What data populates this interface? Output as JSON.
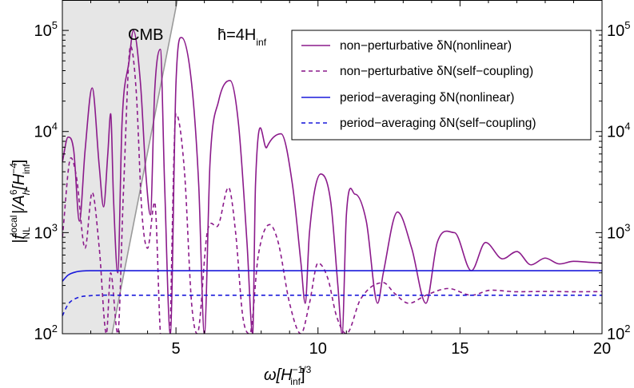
{
  "chart_data": {
    "type": "line",
    "x_scale": "linear",
    "y_scale": "log",
    "xlim": [
      1,
      20
    ],
    "ylim": [
      100,
      200000
    ],
    "x_ticks": [
      5,
      10,
      15,
      20
    ],
    "x_tick_labels": [
      "5",
      "10",
      "15",
      "20"
    ],
    "y_ticks": [
      100,
      1000,
      10000,
      100000
    ],
    "y_tick_labels": [
      {
        "base": "10",
        "exp": "2"
      },
      {
        "base": "10",
        "exp": "3"
      },
      {
        "base": "10",
        "exp": "4"
      },
      {
        "base": "10",
        "exp": "5"
      }
    ],
    "xlabel": {
      "main": "ω[H",
      "sub": "inf",
      "sup": "−1/3",
      "close": "]"
    },
    "ylabel": {
      "part1": "|f",
      "sup1": "local",
      "sub1": "NL",
      "part2": "|/A",
      "sup2": "6",
      "sub2": "h",
      "part3": "[H",
      "sup3": "−4",
      "sub3": "inf",
      "close": "]"
    },
    "annotations": {
      "cmb_label": "CMB",
      "param_label": {
        "main": "h̄=4H",
        "sub": "inf"
      }
    },
    "cmb_region": {
      "boundary_x_at_ymin": 2.75,
      "boundary_x_at_ymax": 5.05,
      "color": "#e6e6e6"
    },
    "grid": false,
    "legend_position": "top-right",
    "series": [
      {
        "name": "non−perturbative δN(nonlinear)",
        "color": "#8b1a8b",
        "dash": "solid",
        "points": [
          [
            1.0,
            5000
          ],
          [
            1.2,
            8800
          ],
          [
            1.4,
            6500
          ],
          [
            1.6,
            1300
          ],
          [
            1.8,
            6500
          ],
          [
            2.05,
            27000
          ],
          [
            2.3,
            4500
          ],
          [
            2.45,
            1800
          ],
          [
            2.6,
            6000
          ],
          [
            2.7,
            15000
          ],
          [
            2.8,
            2200
          ],
          [
            2.95,
            400
          ],
          [
            3.1,
            12000
          ],
          [
            3.35,
            50000
          ],
          [
            3.5,
            100000
          ],
          [
            3.75,
            30000
          ],
          [
            3.95,
            3500
          ],
          [
            4.1,
            1500
          ],
          [
            4.25,
            25000
          ],
          [
            4.45,
            65000
          ],
          [
            4.6,
            3000
          ],
          [
            4.8,
            100
          ],
          [
            5.0,
            30000
          ],
          [
            5.2,
            85000
          ],
          [
            5.55,
            30000
          ],
          [
            5.8,
            3000
          ],
          [
            6.0,
            100
          ],
          [
            6.2,
            5000
          ],
          [
            6.5,
            20000
          ],
          [
            6.9,
            32000
          ],
          [
            7.2,
            12000
          ],
          [
            7.5,
            800
          ],
          [
            7.7,
            100
          ],
          [
            7.8,
            3000
          ],
          [
            8.2,
            7000
          ],
          [
            8.7,
            9500
          ],
          [
            9.1,
            3000
          ],
          [
            9.4,
            500
          ],
          [
            9.55,
            200
          ],
          [
            9.7,
            1000
          ],
          [
            10.1,
            3800
          ],
          [
            10.45,
            2000
          ],
          [
            10.7,
            300
          ],
          [
            10.85,
            100
          ],
          [
            11.0,
            1500
          ],
          [
            11.3,
            2400
          ],
          [
            11.7,
            1300
          ],
          [
            12.1,
            200
          ],
          [
            12.3,
            400
          ],
          [
            12.8,
            1600
          ],
          [
            13.3,
            700
          ],
          [
            13.8,
            200
          ],
          [
            14.2,
            800
          ],
          [
            14.8,
            1000
          ],
          [
            15.4,
            420
          ],
          [
            15.9,
            800
          ],
          [
            16.5,
            550
          ],
          [
            17.0,
            650
          ],
          [
            17.5,
            480
          ],
          [
            18.0,
            560
          ],
          [
            18.5,
            490
          ],
          [
            19.0,
            520
          ],
          [
            19.5,
            510
          ],
          [
            20.0,
            500
          ]
        ]
      },
      {
        "name": "non−perturbative δN(self−coupling)",
        "color": "#8b1a8b",
        "dash": "dashed",
        "points": [
          [
            1.0,
            900
          ],
          [
            1.3,
            5500
          ],
          [
            1.5,
            3500
          ],
          [
            1.8,
            700
          ],
          [
            2.05,
            2500
          ],
          [
            2.3,
            700
          ],
          [
            2.55,
            100
          ],
          [
            2.7,
            400
          ],
          [
            2.95,
            100
          ],
          [
            3.15,
            2500
          ],
          [
            3.4,
            70000
          ],
          [
            3.6,
            25000
          ],
          [
            3.8,
            1600
          ],
          [
            4.0,
            700
          ],
          [
            4.25,
            2000
          ],
          [
            4.45,
            100
          ],
          [
            4.7,
            20
          ],
          [
            5.0,
            15000
          ],
          [
            5.3,
            4000
          ],
          [
            5.55,
            200
          ],
          [
            5.75,
            100
          ],
          [
            6.1,
            1000
          ],
          [
            6.5,
            1200
          ],
          [
            6.85,
            2800
          ],
          [
            7.1,
            1000
          ],
          [
            7.35,
            150
          ],
          [
            7.6,
            100
          ],
          [
            7.9,
            600
          ],
          [
            8.3,
            1200
          ],
          [
            8.6,
            800
          ],
          [
            9.0,
            200
          ],
          [
            9.4,
            100
          ],
          [
            9.7,
            200
          ],
          [
            10.0,
            500
          ],
          [
            10.35,
            350
          ],
          [
            10.65,
            150
          ],
          [
            11.0,
            100
          ],
          [
            11.5,
            220
          ],
          [
            12.3,
            320
          ],
          [
            12.7,
            250
          ],
          [
            13.2,
            200
          ],
          [
            13.8,
            240
          ],
          [
            14.6,
            280
          ],
          [
            15.4,
            240
          ],
          [
            16.1,
            270
          ],
          [
            17.0,
            260
          ],
          [
            18.0,
            262
          ],
          [
            19.0,
            260
          ],
          [
            20.0,
            261
          ]
        ]
      },
      {
        "name": "period−averaging δN(nonlinear)",
        "color": "#1a1adb",
        "dash": "solid",
        "points": [
          [
            1.0,
            330
          ],
          [
            1.2,
            380
          ],
          [
            1.5,
            410
          ],
          [
            2.0,
            420
          ],
          [
            3.0,
            420
          ],
          [
            5.0,
            420
          ],
          [
            10.0,
            420
          ],
          [
            15.0,
            420
          ],
          [
            20.0,
            420
          ]
        ]
      },
      {
        "name": "period−averaging δN(self−coupling)",
        "color": "#1a1adb",
        "dash": "dashed",
        "points": [
          [
            1.0,
            150
          ],
          [
            1.2,
            195
          ],
          [
            1.5,
            225
          ],
          [
            2.0,
            238
          ],
          [
            3.0,
            240
          ],
          [
            5.0,
            240
          ],
          [
            10.0,
            240
          ],
          [
            15.0,
            240
          ],
          [
            20.0,
            240
          ]
        ]
      }
    ]
  }
}
